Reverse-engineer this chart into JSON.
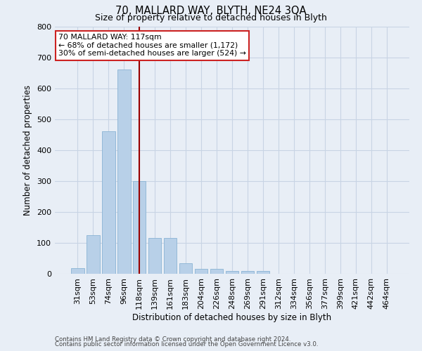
{
  "title": "70, MALLARD WAY, BLYTH, NE24 3QA",
  "subtitle": "Size of property relative to detached houses in Blyth",
  "xlabel": "Distribution of detached houses by size in Blyth",
  "ylabel": "Number of detached properties",
  "footnote1": "Contains HM Land Registry data © Crown copyright and database right 2024.",
  "footnote2": "Contains public sector information licensed under the Open Government Licence v3.0.",
  "bar_labels": [
    "31sqm",
    "53sqm",
    "74sqm",
    "96sqm",
    "118sqm",
    "139sqm",
    "161sqm",
    "183sqm",
    "204sqm",
    "226sqm",
    "248sqm",
    "269sqm",
    "291sqm",
    "312sqm",
    "334sqm",
    "356sqm",
    "377sqm",
    "399sqm",
    "421sqm",
    "442sqm",
    "464sqm"
  ],
  "bar_values": [
    18,
    125,
    460,
    660,
    300,
    115,
    115,
    35,
    15,
    15,
    10,
    10,
    10,
    0,
    0,
    0,
    0,
    0,
    0,
    0,
    0
  ],
  "bar_color": "#b8d0e8",
  "bar_edge_color": "#8ab4d4",
  "grid_color": "#c8d4e4",
  "bg_color": "#e8eef6",
  "vline_x_index": 4,
  "vline_color": "#990000",
  "annotation_line1": "70 MALLARD WAY: 117sqm",
  "annotation_line2": "← 68% of detached houses are smaller (1,172)",
  "annotation_line3": "30% of semi-detached houses are larger (524) →",
  "annotation_box_color": "#ffffff",
  "annotation_box_edge": "#cc2222",
  "ylim": [
    0,
    800
  ],
  "yticks": [
    0,
    100,
    200,
    300,
    400,
    500,
    600,
    700,
    800
  ]
}
